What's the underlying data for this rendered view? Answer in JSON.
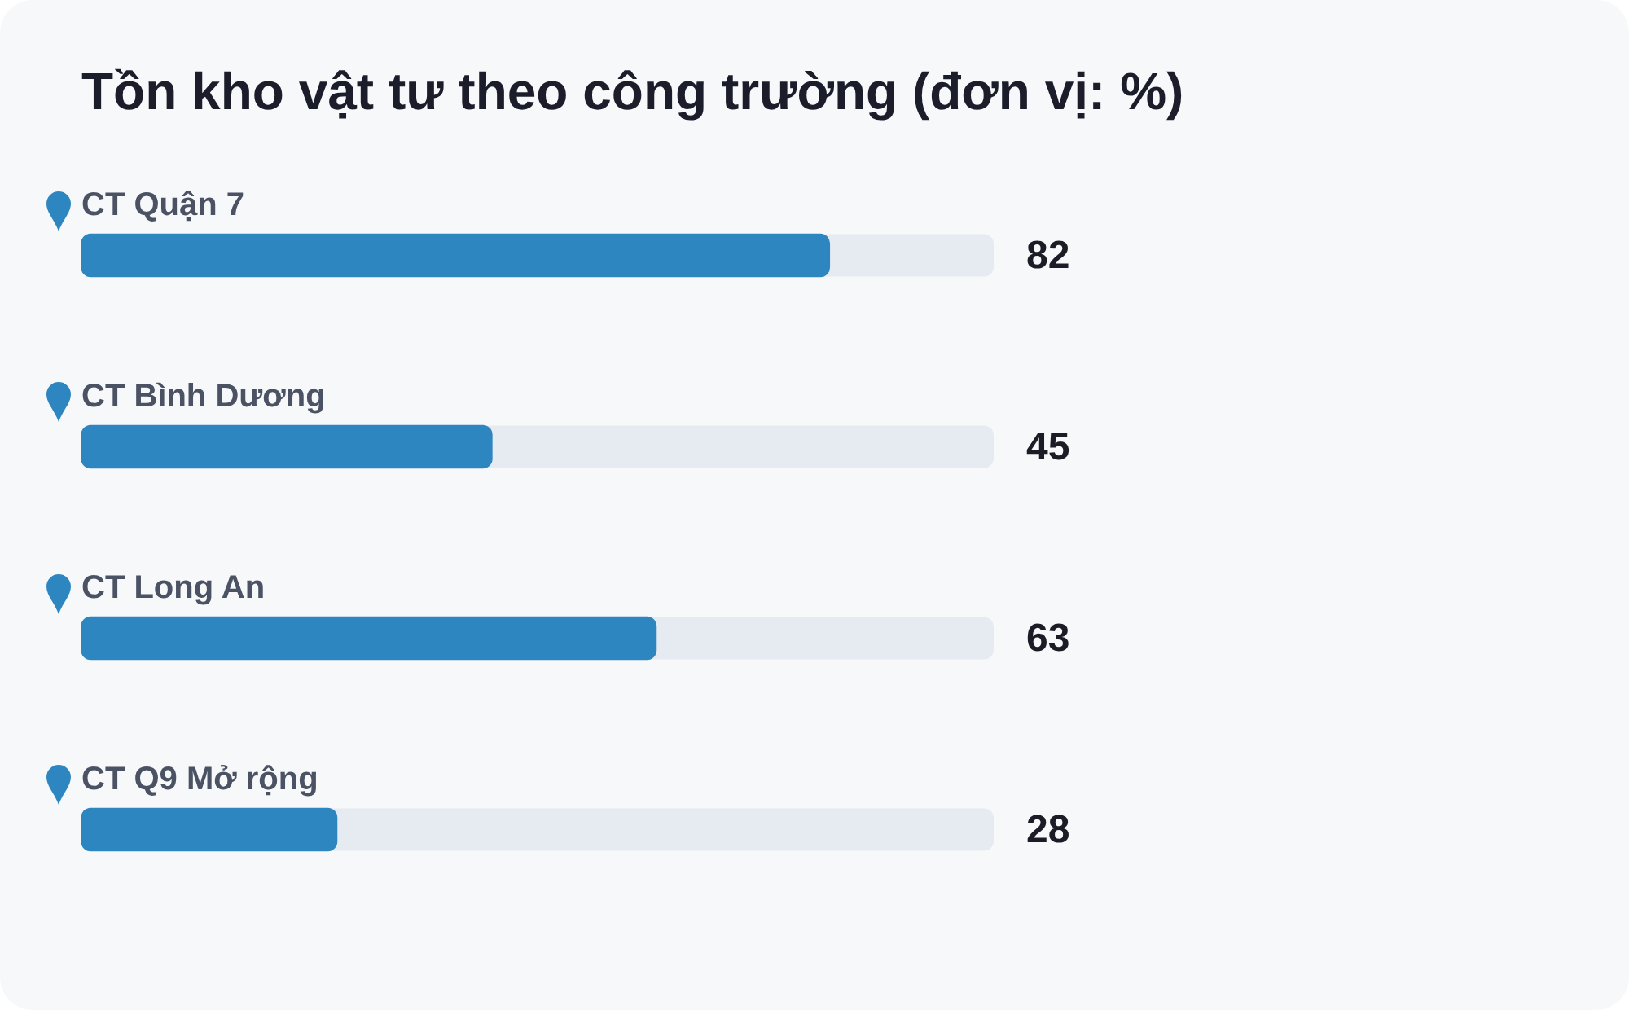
{
  "chart_data": {
    "type": "bar",
    "title": "Tồn kho vật tư theo công trường (đơn vị: %)",
    "orientation": "horizontal",
    "categories": [
      "CT Quận 7",
      "CT Bình Dương",
      "CT Long An",
      "CT Q9 Mở rộng"
    ],
    "values": [
      82,
      45,
      63,
      28
    ],
    "color": "#2e86c1",
    "xlim": [
      0,
      100
    ],
    "data_labels": true,
    "tick_labels": "y"
  }
}
